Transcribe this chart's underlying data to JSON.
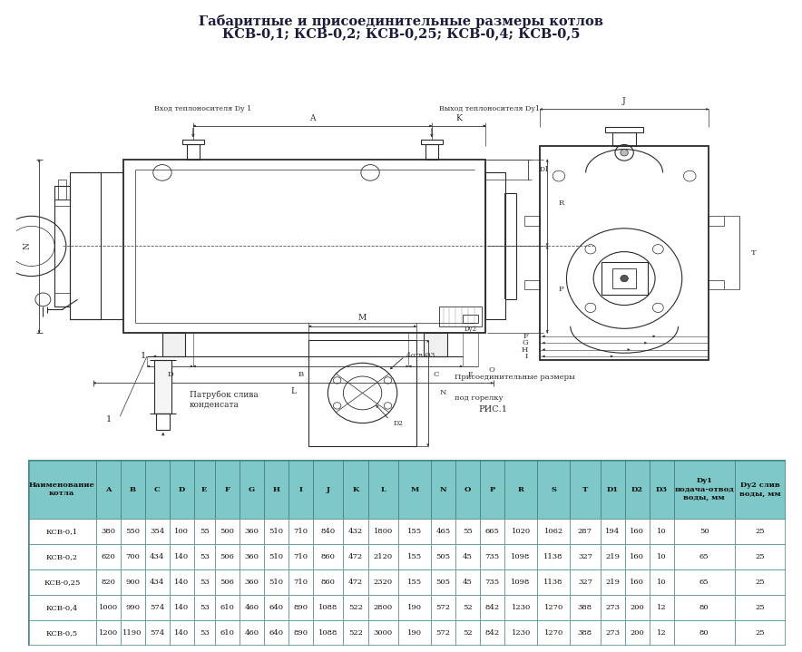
{
  "title_line1": "Габаритные и присоединительные размеры котлов",
  "title_line2": "КСВ-0,1; КСВ-0,2; КСВ-0,25; КСВ-0,4; КСВ-0,5",
  "label_inlet": "Вход теплоносителя Dy 1",
  "label_outlet": "Выход теплоносителя Dy1",
  "label_drain": "Патрубок слива\nконденсата",
  "label_burner_line1": "Присоединительные размеры",
  "label_burner_line2": "под горелку",
  "label_holes": "4отв Ø3",
  "label_fig": "РИС.1",
  "table_header": [
    "Наименование\nкотла",
    "A",
    "B",
    "C",
    "D",
    "E",
    "F",
    "G",
    "H",
    "I",
    "J",
    "K",
    "L",
    "M",
    "N",
    "O",
    "P",
    "R",
    "S",
    "T",
    "D1",
    "D2",
    "D3",
    "Dy1\nподача-отвод\nводы, мм",
    "Dy2 слив\nводы, мм"
  ],
  "table_rows": [
    [
      "КСВ-0,1",
      380,
      550,
      354,
      100,
      55,
      500,
      360,
      510,
      710,
      840,
      432,
      1800,
      155,
      465,
      55,
      665,
      1020,
      1062,
      287,
      194,
      160,
      10,
      50,
      25
    ],
    [
      "КСВ-0,2",
      620,
      700,
      434,
      140,
      53,
      506,
      360,
      510,
      710,
      860,
      472,
      2120,
      155,
      505,
      45,
      735,
      1098,
      1138,
      327,
      219,
      160,
      10,
      65,
      25
    ],
    [
      "КСВ-0,25",
      820,
      900,
      434,
      140,
      53,
      506,
      360,
      510,
      710,
      860,
      472,
      2320,
      155,
      505,
      45,
      735,
      1098,
      1138,
      327,
      219,
      160,
      10,
      65,
      25
    ],
    [
      "КСВ-0,4",
      1000,
      990,
      574,
      140,
      53,
      610,
      460,
      640,
      890,
      1088,
      522,
      2800,
      190,
      572,
      52,
      842,
      1230,
      1270,
      388,
      273,
      200,
      12,
      80,
      25
    ],
    [
      "КСВ-0,5",
      1200,
      1190,
      574,
      140,
      53,
      610,
      460,
      640,
      890,
      1088,
      522,
      3000,
      190,
      572,
      52,
      842,
      1230,
      1270,
      388,
      273,
      200,
      12,
      80,
      25
    ]
  ],
  "table_header_bg": "#7EC8C8",
  "table_border_color": "#4A8A8A",
  "bg_color": "#FFFFFF",
  "draw_color": "#2a2a2a",
  "dim_color": "#2a2a2a",
  "title_color": "#1a1a3a",
  "title_fs": 10.5,
  "tbl_fs": 7.0
}
